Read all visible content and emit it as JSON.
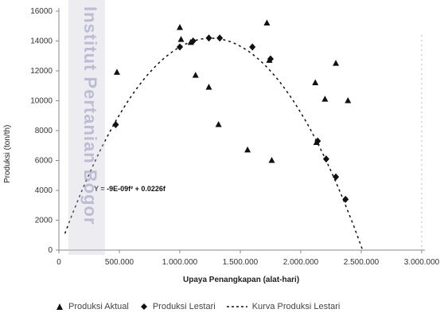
{
  "watermark": "Institut Pertanian Bogor",
  "chart_data": {
    "type": "scatter",
    "title": "",
    "xlabel": "Upaya Penangkapan (alat-hari)",
    "ylabel": "Produksi (ton/th)",
    "xlim": [
      0,
      3000000
    ],
    "ylim": [
      0,
      16000
    ],
    "x_ticks": [
      0,
      500000,
      1000000,
      1500000,
      2000000,
      2500000,
      3000000
    ],
    "x_tick_labels": [
      "0",
      "500.000",
      "1.000.000",
      "1.500.000",
      "2.000.000",
      "2.500.000",
      "3.000.000"
    ],
    "y_ticks": [
      0,
      2000,
      4000,
      6000,
      8000,
      10000,
      12000,
      14000,
      16000
    ],
    "y_tick_labels": [
      "0",
      "2000",
      "4000",
      "6000",
      "8000",
      "10000",
      "12000",
      "14000",
      "16000"
    ],
    "equation": "Y = -9E-09f² + 0.0226f",
    "legend_position": "bottom",
    "series": [
      {
        "name": "Produksi Aktual",
        "marker": "triangle",
        "color": "#111111",
        "points": [
          {
            "x": 480000,
            "y": 11900
          },
          {
            "x": 1000000,
            "y": 14900
          },
          {
            "x": 1010000,
            "y": 14100
          },
          {
            "x": 1090000,
            "y": 13900
          },
          {
            "x": 1130000,
            "y": 11700
          },
          {
            "x": 1240000,
            "y": 10900
          },
          {
            "x": 1320000,
            "y": 8400
          },
          {
            "x": 1560000,
            "y": 6700
          },
          {
            "x": 1720000,
            "y": 15200
          },
          {
            "x": 1740000,
            "y": 12700
          },
          {
            "x": 1760000,
            "y": 6000
          },
          {
            "x": 2120000,
            "y": 11200
          },
          {
            "x": 2130000,
            "y": 7200
          },
          {
            "x": 2200000,
            "y": 10100
          },
          {
            "x": 2290000,
            "y": 12500
          },
          {
            "x": 2390000,
            "y": 10000
          }
        ]
      },
      {
        "name": "Produksi Lestari",
        "marker": "diamond",
        "color": "#111111",
        "points": [
          {
            "x": 470000,
            "y": 8400
          },
          {
            "x": 1000000,
            "y": 13600
          },
          {
            "x": 1110000,
            "y": 14000
          },
          {
            "x": 1240000,
            "y": 14200
          },
          {
            "x": 1330000,
            "y": 14200
          },
          {
            "x": 1600000,
            "y": 13600
          },
          {
            "x": 1750000,
            "y": 12800
          },
          {
            "x": 2140000,
            "y": 7300
          },
          {
            "x": 2210000,
            "y": 6100
          },
          {
            "x": 2290000,
            "y": 4900
          },
          {
            "x": 2370000,
            "y": 3400
          }
        ]
      },
      {
        "name": "Kurva Produksi Lestari",
        "marker": "dashed-line",
        "color": "#111111",
        "curve": {
          "a": -9e-09,
          "b": 0.0226,
          "x_start": 50000,
          "x_end": 2510000
        }
      }
    ]
  },
  "legend": {
    "items": [
      {
        "symbol": "triangle",
        "label": "Produksi Aktual"
      },
      {
        "symbol": "diamond",
        "label": "Produksi Lestari"
      },
      {
        "symbol": "dashed-line",
        "label": "Kurva Produksi Lestari"
      }
    ]
  }
}
